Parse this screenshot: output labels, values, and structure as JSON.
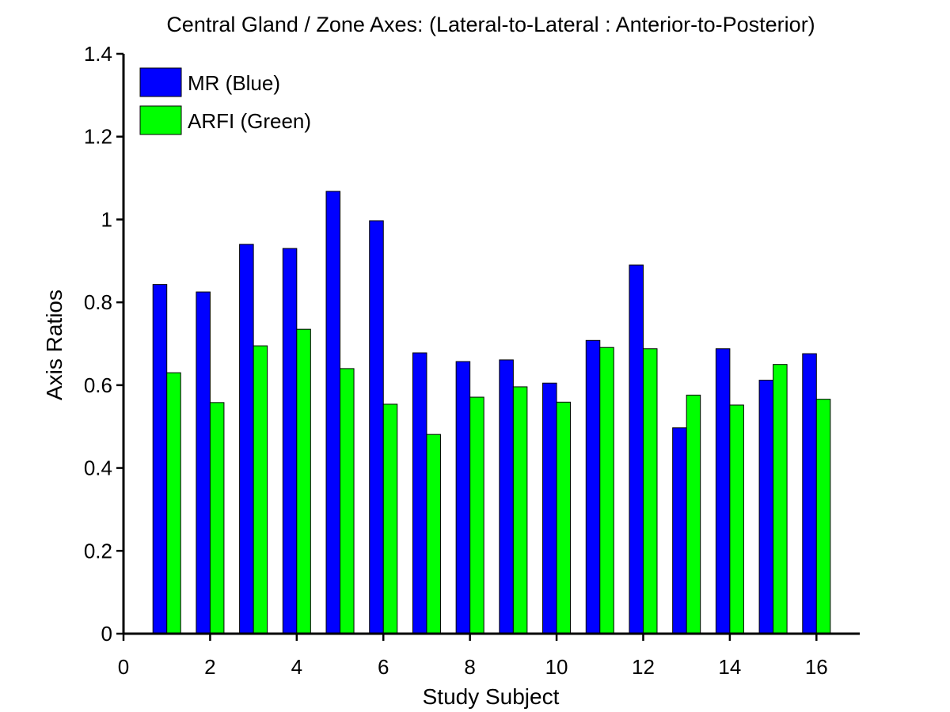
{
  "chart_data": {
    "type": "bar",
    "title": "Central Gland / Zone Axes: (Lateral-to-Lateral : Anterior-to-Posterior)",
    "xlabel": "Study Subject",
    "ylabel": "Axis Ratios",
    "xlim": [
      0,
      17
    ],
    "ylim": [
      0,
      1.4
    ],
    "xticks": [
      "0",
      "2",
      "4",
      "6",
      "8",
      "10",
      "12",
      "14",
      "16"
    ],
    "yticks": [
      "0",
      "0.2",
      "0.4",
      "0.6",
      "0.8",
      "1",
      "1.2",
      "1.4"
    ],
    "categories": [
      1,
      2,
      3,
      4,
      5,
      6,
      7,
      8,
      9,
      10,
      11,
      12,
      13,
      14,
      15,
      16
    ],
    "series": [
      {
        "name": "MR (Blue)",
        "color": "#0000ff",
        "values": [
          0.843,
          0.825,
          0.94,
          0.93,
          1.068,
          0.997,
          0.678,
          0.657,
          0.661,
          0.605,
          0.708,
          0.89,
          0.497,
          0.688,
          0.612,
          0.676
        ]
      },
      {
        "name": "ARFI (Green)",
        "color": "#00ff00",
        "values": [
          0.63,
          0.558,
          0.695,
          0.735,
          0.64,
          0.554,
          0.481,
          0.571,
          0.596,
          0.559,
          0.691,
          0.688,
          0.576,
          0.552,
          0.65,
          0.566
        ]
      }
    ],
    "legend_position": "top-left",
    "grid": false
  }
}
